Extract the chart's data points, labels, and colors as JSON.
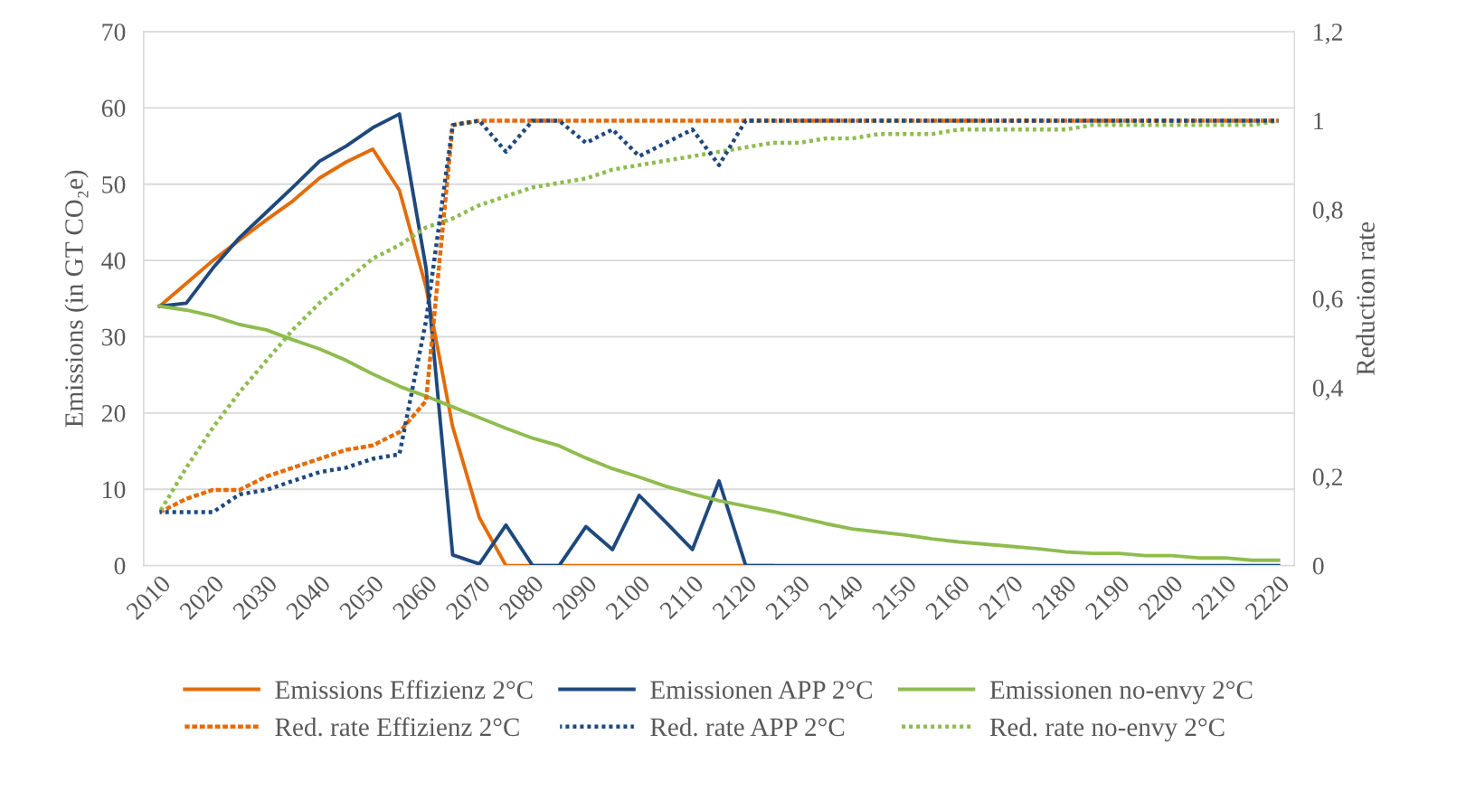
{
  "chart_data": {
    "type": "line",
    "ylabel": "Emissions (in GT CO₂e)",
    "y2label": "Reduction rate",
    "x": [
      2010,
      2015,
      2020,
      2025,
      2030,
      2035,
      2040,
      2045,
      2050,
      2055,
      2060,
      2065,
      2070,
      2075,
      2080,
      2085,
      2090,
      2095,
      2100,
      2105,
      2110,
      2115,
      2120,
      2125,
      2130,
      2135,
      2140,
      2145,
      2150,
      2155,
      2160,
      2165,
      2170,
      2175,
      2180,
      2185,
      2190,
      2195,
      2200,
      2205,
      2210,
      2215,
      2220
    ],
    "xlim": [
      2007,
      2223
    ],
    "xticks": [
      2010,
      2020,
      2030,
      2040,
      2050,
      2060,
      2070,
      2080,
      2090,
      2100,
      2110,
      2120,
      2130,
      2140,
      2150,
      2160,
      2170,
      2180,
      2190,
      2200,
      2210,
      2220
    ],
    "ylim": [
      0,
      70
    ],
    "yticks": [
      0,
      10,
      20,
      30,
      40,
      50,
      60,
      70
    ],
    "y2lim": [
      0,
      1.2
    ],
    "y2ticks": [
      0,
      {
        "value": 0.2,
        "label": "0,2"
      },
      {
        "value": 0.4,
        "label": "0,4"
      },
      {
        "value": 0.6,
        "label": "0,6"
      },
      {
        "value": 0.8,
        "label": "0,8"
      },
      1,
      {
        "value": 1.2,
        "label": "1,2"
      }
    ],
    "grid": "y",
    "legend": "bottom",
    "marker": "none",
    "series": [
      {
        "name": "Emissions Effizienz 2°C",
        "color": "#e36c0a",
        "line_style": "solid",
        "values": [
          34,
          37,
          40,
          42.7,
          45.3,
          47.8,
          50.8,
          52.9,
          54.6,
          49.2,
          36.5,
          18.2,
          6.3,
          0,
          0,
          0,
          0,
          0,
          0,
          0,
          0,
          0,
          0,
          0,
          null,
          null,
          null,
          null,
          null,
          null,
          null,
          null,
          null,
          null,
          null,
          null,
          null,
          null,
          null,
          null,
          null,
          null,
          null
        ]
      },
      {
        "name": "Emissionen APP 2°C",
        "color": "#1f497d",
        "line_style": "solid",
        "values": [
          34,
          34.4,
          39,
          43,
          46.3,
          49.6,
          53,
          55,
          57.4,
          59.2,
          39,
          1.4,
          0.2,
          5.3,
          0,
          0,
          5.1,
          2.1,
          9.2,
          5.7,
          2.1,
          11.1,
          0,
          0,
          0,
          0,
          0,
          0,
          0,
          0,
          0,
          0,
          0,
          0,
          0,
          0,
          0,
          0,
          0,
          0,
          0,
          0,
          0
        ]
      },
      {
        "name": "Emissionen no-envy 2°C",
        "color": "#8fbc4f",
        "line_style": "solid",
        "values": [
          34,
          33.5,
          32.7,
          31.6,
          30.9,
          29.6,
          28.4,
          26.9,
          25.1,
          23.5,
          22.2,
          20.8,
          19.4,
          18.0,
          16.7,
          15.7,
          14.1,
          12.7,
          11.6,
          10.4,
          9.4,
          8.5,
          7.8,
          7.1,
          6.3,
          5.5,
          4.8,
          4.4,
          4.0,
          3.5,
          3.1,
          2.8,
          2.5,
          2.2,
          1.8,
          1.6,
          1.6,
          1.3,
          1.3,
          1.0,
          1.0,
          0.7,
          0.7
        ]
      },
      {
        "name": "Red. rate Effizienz 2°C",
        "color": "#e36c0a",
        "line_style": "dotted",
        "axis": "y2",
        "values": [
          0.12,
          0.15,
          0.17,
          0.17,
          0.2,
          0.22,
          0.24,
          0.26,
          0.27,
          0.3,
          0.37,
          0.99,
          1,
          1,
          1,
          1,
          1,
          1,
          1,
          1,
          1,
          1,
          1,
          1,
          1,
          1,
          1,
          1,
          1,
          1,
          1,
          1,
          1,
          1,
          1,
          1,
          1,
          1,
          1,
          1,
          1,
          1,
          1
        ]
      },
      {
        "name": "Red. rate APP 2°C",
        "color": "#1f497d",
        "line_style": "dotted",
        "axis": "y2",
        "values": [
          0.12,
          0.12,
          0.12,
          0.16,
          0.17,
          0.19,
          0.21,
          0.22,
          0.24,
          0.25,
          0.55,
          0.99,
          1,
          0.93,
          1,
          1,
          0.95,
          0.98,
          0.92,
          0.95,
          0.98,
          0.9,
          1,
          1,
          1,
          1,
          1,
          1,
          1,
          1,
          1,
          1,
          1,
          1,
          1,
          1,
          1,
          1,
          1,
          1,
          1,
          1,
          1
        ]
      },
      {
        "name": "Red. rate no-envy 2°C",
        "color": "#8fbc4f",
        "line_style": "dotted",
        "axis": "y2",
        "values": [
          0.12,
          0.22,
          0.31,
          0.39,
          0.46,
          0.53,
          0.59,
          0.64,
          0.69,
          0.72,
          0.76,
          0.78,
          0.81,
          0.83,
          0.85,
          0.86,
          0.87,
          0.89,
          0.9,
          0.91,
          0.92,
          0.93,
          0.94,
          0.95,
          0.95,
          0.96,
          0.96,
          0.97,
          0.97,
          0.97,
          0.98,
          0.98,
          0.98,
          0.98,
          0.98,
          0.99,
          0.99,
          0.99,
          0.99,
          0.99,
          0.99,
          0.99,
          1.0
        ]
      }
    ]
  }
}
